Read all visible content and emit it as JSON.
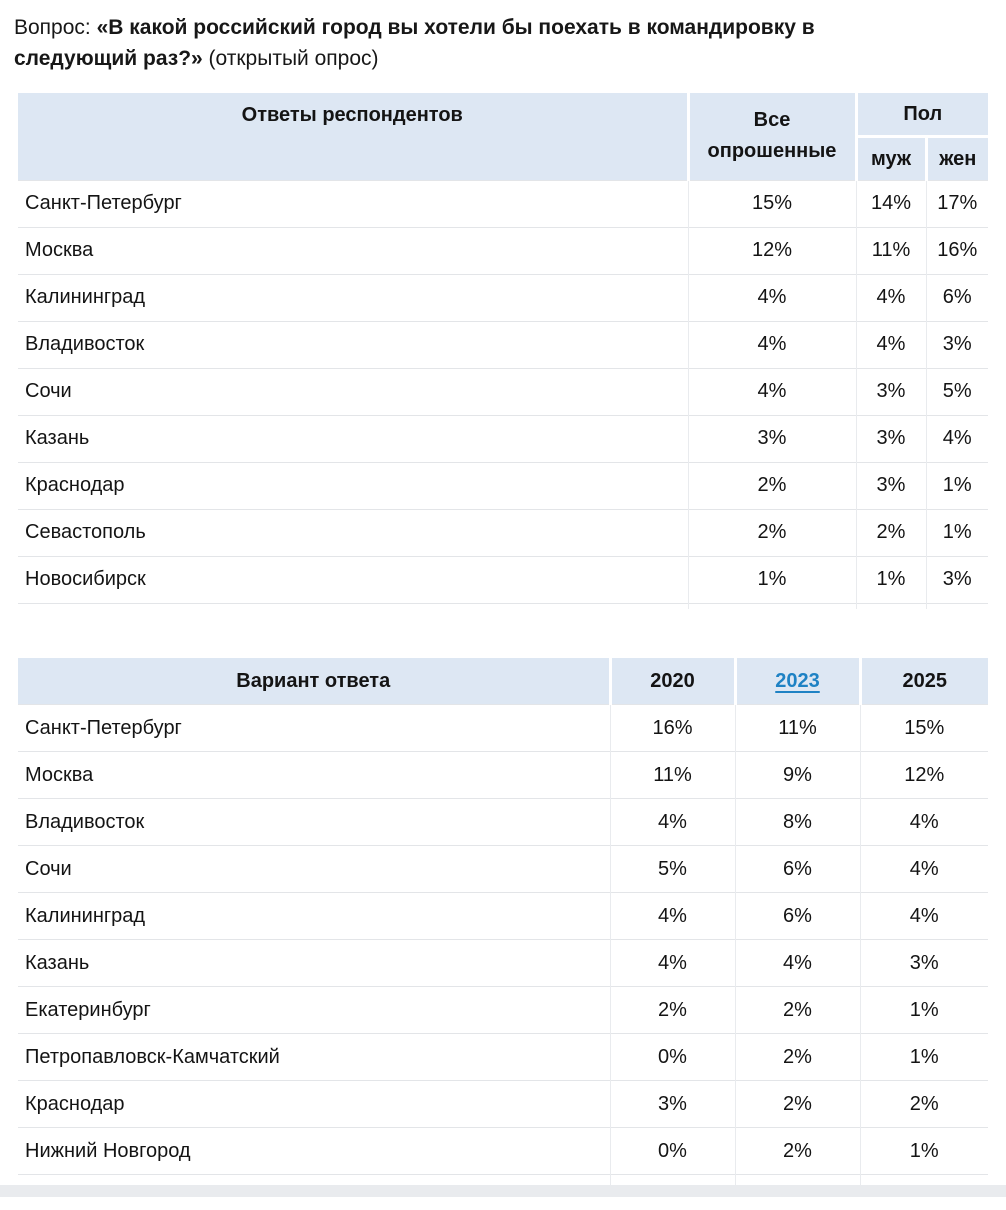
{
  "title": {
    "prefix": "Вопрос: ",
    "bold_line1": "«В какой российский город вы хотели бы поехать в командировку в",
    "bold_line2": "следующий раз?»",
    "suffix": " (открытый опрос)"
  },
  "colors": {
    "header_background": "#dde7f3",
    "link_blue": "#1e82c4",
    "row_border": "#e3e5e8",
    "column_border": "#e9ebee",
    "bottom_strip": "#e9ebee",
    "text": "#141414"
  },
  "table1": {
    "header": {
      "col_answers": "Ответы респондентов",
      "col_all": "Все опрошенные",
      "col_gender": "Пол",
      "col_male": "муж",
      "col_female": "жен"
    },
    "rows": [
      {
        "city": "Санкт-Петербург",
        "all": "15%",
        "male": "14%",
        "female": "17%"
      },
      {
        "city": "Москва",
        "all": "12%",
        "male": "11%",
        "female": "16%"
      },
      {
        "city": "Калининград",
        "all": "4%",
        "male": "4%",
        "female": "6%"
      },
      {
        "city": "Владивосток",
        "all": "4%",
        "male": "4%",
        "female": "3%"
      },
      {
        "city": "Сочи",
        "all": "4%",
        "male": "3%",
        "female": "5%"
      },
      {
        "city": "Казань",
        "all": "3%",
        "male": "3%",
        "female": "4%"
      },
      {
        "city": "Краснодар",
        "all": "2%",
        "male": "3%",
        "female": "1%"
      },
      {
        "city": "Севастополь",
        "all": "2%",
        "male": "2%",
        "female": "1%"
      },
      {
        "city": "Новосибирск",
        "all": "1%",
        "male": "1%",
        "female": "3%"
      }
    ]
  },
  "table2": {
    "header": {
      "col_option": "Вариант ответа",
      "col_2020": "2020",
      "col_2023": "2023",
      "col_2025": "2025"
    },
    "rows": [
      {
        "city": "Санкт-Петербург",
        "y2020": "16%",
        "y2023": "11%",
        "y2025": "15%"
      },
      {
        "city": "Москва",
        "y2020": "11%",
        "y2023": "9%",
        "y2025": "12%"
      },
      {
        "city": "Владивосток",
        "y2020": "4%",
        "y2023": "8%",
        "y2025": "4%"
      },
      {
        "city": "Сочи",
        "y2020": "5%",
        "y2023": "6%",
        "y2025": "4%"
      },
      {
        "city": "Калининград",
        "y2020": "4%",
        "y2023": "6%",
        "y2025": "4%"
      },
      {
        "city": "Казань",
        "y2020": "4%",
        "y2023": "4%",
        "y2025": "3%"
      },
      {
        "city": "Екатеринбург",
        "y2020": "2%",
        "y2023": "2%",
        "y2025": "1%"
      },
      {
        "city": "Петропавловск-Камчатский",
        "y2020": "0%",
        "y2023": "2%",
        "y2025": "1%"
      },
      {
        "city": "Краснодар",
        "y2020": "3%",
        "y2023": "2%",
        "y2025": "2%"
      },
      {
        "city": "Нижний Новгород",
        "y2020": "0%",
        "y2023": "2%",
        "y2025": "1%"
      }
    ]
  }
}
